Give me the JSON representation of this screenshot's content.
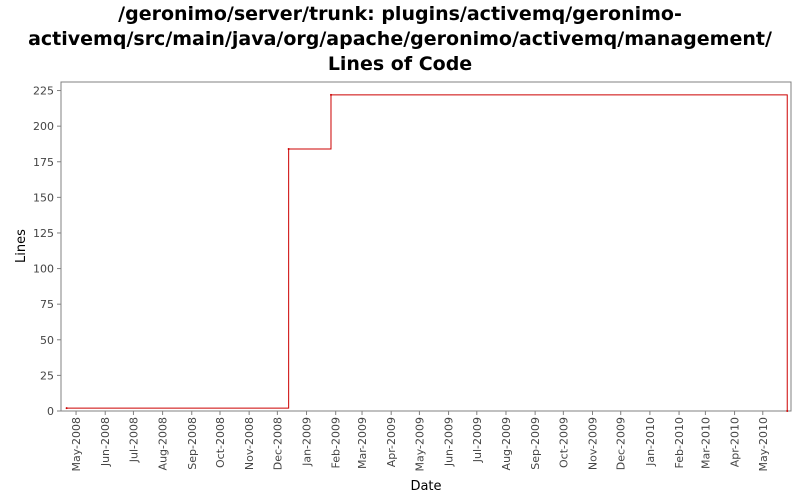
{
  "chart_data": {
    "type": "line",
    "step": true,
    "title_lines": [
      "/geronimo/server/trunk: plugins/activemq/geronimo-",
      "activemq/src/main/java/org/apache/geronimo/activemq/management/",
      "Lines of Code"
    ],
    "xlabel": "Date",
    "ylabel": "Lines",
    "ylim": [
      0,
      231
    ],
    "yticks": [
      0,
      25,
      50,
      75,
      100,
      125,
      150,
      175,
      200,
      225
    ],
    "xlim": [
      "2008-04-15",
      "2010-05-31"
    ],
    "xticks": [
      "2008-05-01",
      "2008-06-01",
      "2008-07-01",
      "2008-08-01",
      "2008-09-01",
      "2008-10-01",
      "2008-11-01",
      "2008-12-01",
      "2009-01-01",
      "2009-02-01",
      "2009-03-01",
      "2009-04-01",
      "2009-05-01",
      "2009-06-01",
      "2009-07-01",
      "2009-08-01",
      "2009-09-01",
      "2009-10-01",
      "2009-11-01",
      "2009-12-01",
      "2010-01-01",
      "2010-02-01",
      "2010-03-01",
      "2010-04-01",
      "2010-05-01"
    ],
    "xtick_labels": [
      "May-2008",
      "Jun-2008",
      "Jul-2008",
      "Aug-2008",
      "Sep-2008",
      "Oct-2008",
      "Nov-2008",
      "Dec-2008",
      "Jan-2009",
      "Feb-2009",
      "Mar-2009",
      "Apr-2009",
      "May-2009",
      "Jun-2009",
      "Jul-2009",
      "Aug-2009",
      "Sep-2009",
      "Oct-2009",
      "Nov-2009",
      "Dec-2009",
      "Jan-2010",
      "Feb-2010",
      "Mar-2010",
      "Apr-2010",
      "May-2010"
    ],
    "grid": false,
    "series": [
      {
        "color": "#cc0000",
        "x": [
          "2008-04-21",
          "2008-12-13",
          "2009-01-27",
          "2010-05-27"
        ],
        "y": [
          2,
          184,
          222,
          0
        ]
      }
    ]
  }
}
